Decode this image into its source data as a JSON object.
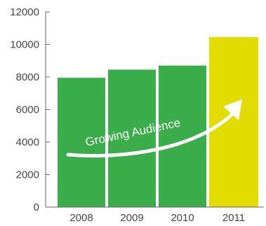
{
  "chart_data": {
    "type": "bar",
    "title": "",
    "xlabel": "",
    "ylabel": "",
    "categories": [
      "2008",
      "2009",
      "2010",
      "2011"
    ],
    "values": [
      7950,
      8450,
      8700,
      10450
    ],
    "ylim": [
      0,
      12000
    ],
    "yticks": [
      0,
      2000,
      4000,
      6000,
      8000,
      10000,
      12000
    ],
    "grid": false,
    "legend": "none",
    "bar_colors": [
      "#3aad4a",
      "#3aad4a",
      "#3aad4a",
      "#e3dc00"
    ],
    "annotation": {
      "text": "Growing Audience",
      "color": "#ffffff",
      "arrow": "curved-arrow-up-right"
    }
  }
}
